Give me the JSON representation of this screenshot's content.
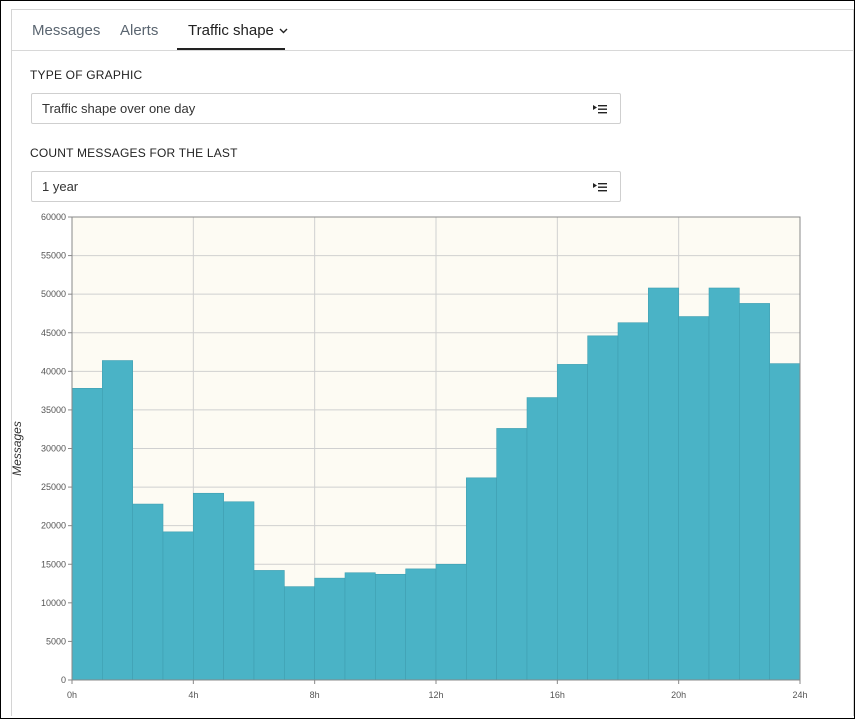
{
  "tabs": [
    {
      "label": "Messages",
      "active": false
    },
    {
      "label": "Alerts",
      "active": false
    },
    {
      "label": "Traffic shape",
      "active": true
    }
  ],
  "type_of_graphic": {
    "label": "TYPE OF GRAPHIC",
    "value": "Traffic shape over one day"
  },
  "count_messages": {
    "label": "COUNT MESSAGES FOR THE LAST",
    "value": "1 year"
  },
  "colors": {
    "bar": "#4ab3c6",
    "bar_edge": "#3f9fb1",
    "plot_bg": "#fdfbf3",
    "grid": "#d0d0d0",
    "axis": "#888888"
  },
  "chart_data": {
    "type": "bar",
    "ylabel": "Messages",
    "xlabel": "",
    "x_ticks": [
      "0h",
      "4h",
      "8h",
      "12h",
      "16h",
      "20h",
      "24h"
    ],
    "x_tick_hours": [
      0,
      4,
      8,
      12,
      16,
      20,
      24
    ],
    "y_ticks": [
      0,
      5000,
      10000,
      15000,
      20000,
      25000,
      30000,
      35000,
      40000,
      45000,
      50000,
      55000,
      60000
    ],
    "ylim": [
      0,
      60000
    ],
    "xlim": [
      0,
      24
    ],
    "grid": true,
    "legend": "none",
    "hours": [
      0,
      1,
      2,
      3,
      4,
      5,
      6,
      7,
      8,
      9,
      10,
      11,
      12,
      13,
      14,
      15,
      16,
      17,
      18,
      19,
      20,
      21,
      22,
      23
    ],
    "values": [
      37800,
      41400,
      22800,
      19200,
      24200,
      23100,
      14200,
      12100,
      13200,
      13900,
      13700,
      14400,
      15000,
      26200,
      32600,
      36600,
      40900,
      44600,
      46300,
      50800,
      47100,
      50800,
      48800,
      41000
    ]
  }
}
